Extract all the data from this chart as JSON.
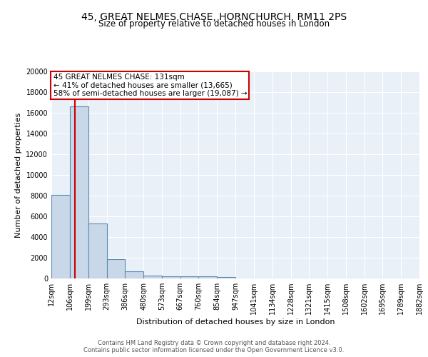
{
  "title": "45, GREAT NELMES CHASE, HORNCHURCH, RM11 2PS",
  "subtitle": "Size of property relative to detached houses in London",
  "xlabel": "Distribution of detached houses by size in London",
  "ylabel": "Number of detached properties",
  "footer_line1": "Contains HM Land Registry data © Crown copyright and database right 2024.",
  "footer_line2": "Contains public sector information licensed under the Open Government Licence v3.0.",
  "bin_edges": [
    12,
    106,
    199,
    293,
    386,
    480,
    573,
    667,
    760,
    854,
    947,
    1041,
    1134,
    1228,
    1321,
    1415,
    1508,
    1602,
    1695,
    1789,
    1882
  ],
  "bin_labels": [
    "12sqm",
    "106sqm",
    "199sqm",
    "293sqm",
    "386sqm",
    "480sqm",
    "573sqm",
    "667sqm",
    "760sqm",
    "854sqm",
    "947sqm",
    "1041sqm",
    "1134sqm",
    "1228sqm",
    "1321sqm",
    "1415sqm",
    "1508sqm",
    "1602sqm",
    "1695sqm",
    "1789sqm",
    "1882sqm"
  ],
  "bar_heights": [
    8100,
    16600,
    5300,
    1850,
    700,
    310,
    220,
    190,
    180,
    130,
    0,
    0,
    0,
    0,
    0,
    0,
    0,
    0,
    0,
    0
  ],
  "bar_color": "#c8d8e8",
  "bar_edge_color": "#5a8ab0",
  "background_color": "#eaf0f8",
  "grid_color": "#ffffff",
  "property_sqm": 131,
  "property_label": "45 GREAT NELMES CHASE: 131sqm",
  "annotation_line1": "← 41% of detached houses are smaller (13,665)",
  "annotation_line2": "58% of semi-detached houses are larger (19,087) →",
  "red_line_color": "#cc0000",
  "annotation_box_color": "#ffffff",
  "annotation_box_edge_color": "#cc0000",
  "ylim": [
    0,
    20000
  ],
  "yticks": [
    0,
    2000,
    4000,
    6000,
    8000,
    10000,
    12000,
    14000,
    16000,
    18000,
    20000
  ],
  "title_fontsize": 10,
  "subtitle_fontsize": 8.5,
  "ylabel_fontsize": 8,
  "xlabel_fontsize": 8,
  "tick_fontsize": 7,
  "footer_fontsize": 6,
  "annot_fontsize": 7.5
}
